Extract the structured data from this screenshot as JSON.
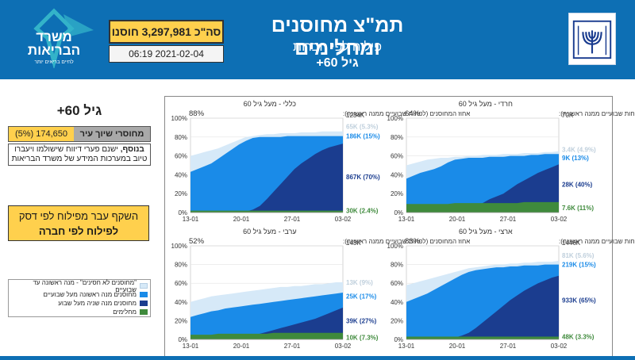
{
  "header": {
    "title": "תמ\"צ מחוסנים ומחלימים",
    "subtitle": "פילוח לפי חברות",
    "age": "גיל 60+",
    "total": "סה\"כ 3,297,981 חוסנו",
    "datetime": "06:19 2021-02-04",
    "ministry_logo_line1": "משרד",
    "ministry_logo_line2": "הבריאות",
    "ministry_logo_tagline": "לחיים בריאים יותר",
    "colors": {
      "header_bg": "#0d6fb4",
      "highlight": "#ffd04d",
      "logo_accent": "#33b3c9"
    }
  },
  "sidebar": {
    "title": "גיל 60+",
    "stat_label": "מחוסרי שיוך עיר",
    "stat_value": "174,650 (5%)",
    "note_bold": "בנוסף,",
    "note_text": " ישנם פערי דיווח שישולמו ויעברו טיוב במערכות המידע של משרד הבריאות",
    "cta_line1": "השקף עבר מפילוח לפי דסק",
    "cta_line2": "לפילוח לפי חברה",
    "legend": [
      {
        "label": "\"מחוסנים לא חסינים\" - מנה ראשונה עד שבועיים",
        "color": "#d6e9f8"
      },
      {
        "label": "מחוסנים מנה ראשונה מעל שבועיים",
        "color": "#1a8be8"
      },
      {
        "label": "מחוסנים מנה שניה מעל שבוע",
        "color": "#1b3d8f"
      },
      {
        "label": "מחלימים",
        "color": "#3f8a3c"
      }
    ]
  },
  "chart_data": [
    {
      "type": "area",
      "title": "כללי - מעל גיל 60",
      "subtitle": "אחוז המחוסנים (לפחות שבועיים ממנה ראשונה):",
      "pct": "88%",
      "population": "1234K",
      "x_ticks": [
        "13-01",
        "20-01",
        "27-01",
        "03-02"
      ],
      "y_ticks": [
        "0%",
        "20%",
        "40%",
        "60%",
        "80%",
        "100%"
      ],
      "ylim": [
        0,
        100
      ],
      "x": [
        0,
        1,
        2,
        3,
        4,
        5,
        6,
        7,
        8,
        9,
        10,
        11,
        12,
        13,
        14,
        15,
        16,
        17,
        18,
        19,
        20,
        21,
        22
      ],
      "series": [
        {
          "name": "תחתון",
          "values": [
            60,
            62,
            64,
            66,
            68,
            71,
            74,
            77,
            80,
            81,
            82,
            83,
            83,
            84,
            84,
            84,
            85,
            85,
            85,
            86,
            86,
            86,
            86
          ]
        },
        {
          "name": "כחול",
          "values": [
            43,
            46,
            49,
            52,
            57,
            62,
            67,
            72,
            76,
            79,
            80,
            80,
            80,
            80,
            81,
            81,
            81,
            81,
            81,
            81,
            81,
            81,
            81
          ]
        },
        {
          "name": "כחול כהה",
          "values": [
            0,
            0,
            0,
            0,
            0,
            0,
            0,
            0,
            1,
            3,
            7,
            14,
            22,
            30,
            38,
            46,
            52,
            57,
            62,
            66,
            69,
            71,
            73
          ]
        },
        {
          "name": "ירוק",
          "values": [
            2,
            2,
            2,
            2,
            2,
            2,
            2,
            2,
            2,
            2,
            2,
            2,
            2,
            2,
            2,
            2,
            2,
            2,
            2,
            2,
            2,
            2,
            2
          ]
        }
      ],
      "labels": [
        {
          "text": "65K (5.3%)",
          "color": "#bfcfdc",
          "y": 91
        },
        {
          "text": "186K (15%)",
          "color": "#1a8be8",
          "y": 81
        },
        {
          "text": "867K (70%)",
          "color": "#1b3d8f",
          "y": 38
        },
        {
          "text": "30K (2.4%)",
          "color": "#3f8a3c",
          "y": 2
        }
      ]
    },
    {
      "type": "area",
      "title": "חרדי - מעל גיל 60",
      "subtitle": "אחוז המחוסנים (לפחות שבועיים ממנה ראשונה):",
      "pct": "64%",
      "population": "70K",
      "x_ticks": [
        "13-01",
        "20-01",
        "27-01",
        "03-02"
      ],
      "y_ticks": [
        "0%",
        "20%",
        "40%",
        "60%",
        "80%",
        "100%"
      ],
      "ylim": [
        0,
        100
      ],
      "x": [
        0,
        1,
        2,
        3,
        4,
        5,
        6,
        7,
        8,
        9,
        10,
        11,
        12,
        13,
        14,
        15,
        16,
        17,
        18,
        19,
        20,
        21,
        22
      ],
      "series": [
        {
          "name": "תחתון",
          "values": [
            50,
            52,
            54,
            56,
            57,
            58,
            58,
            59,
            59,
            60,
            60,
            61,
            61,
            61,
            62,
            62,
            62,
            63,
            63,
            63,
            64,
            64,
            65
          ]
        },
        {
          "name": "כחול",
          "values": [
            36,
            39,
            42,
            44,
            46,
            49,
            53,
            56,
            57,
            58,
            58,
            58,
            59,
            59,
            59,
            60,
            60,
            60,
            61,
            61,
            62,
            62,
            62
          ]
        },
        {
          "name": "כחול כהה",
          "values": [
            0,
            0,
            0,
            0,
            0,
            0,
            0,
            0,
            1,
            3,
            6,
            10,
            14,
            17,
            20,
            25,
            30,
            34,
            38,
            42,
            45,
            48,
            51
          ]
        },
        {
          "name": "ירוק",
          "values": [
            9,
            9,
            9,
            9,
            9,
            9,
            9,
            10,
            10,
            10,
            10,
            10,
            10,
            10,
            10,
            10,
            10,
            11,
            11,
            11,
            11,
            11,
            11
          ]
        }
      ],
      "labels": [
        {
          "text": "3.4K (4.9%)",
          "color": "#bfcfdc",
          "y": 67
        },
        {
          "text": "9K (13%)",
          "color": "#1a8be8",
          "y": 58
        },
        {
          "text": "28K (40%)",
          "color": "#1b3d8f",
          "y": 30
        },
        {
          "text": "7.6K (11%)",
          "color": "#3f8a3c",
          "y": 5
        }
      ]
    },
    {
      "type": "area",
      "title": "ערבי - מעל גיל 60",
      "subtitle": "אחוז המחוסנים (לפחות שבועיים ממנה ראשונה):",
      "pct": "52%",
      "population": "143K",
      "x_ticks": [
        "13-01",
        "20-01",
        "27-01",
        "03-02"
      ],
      "y_ticks": [
        "0%",
        "20%",
        "40%",
        "60%",
        "80%",
        "100%"
      ],
      "ylim": [
        0,
        100
      ],
      "x": [
        0,
        1,
        2,
        3,
        4,
        5,
        6,
        7,
        8,
        9,
        10,
        11,
        12,
        13,
        14,
        15,
        16,
        17,
        18,
        19,
        20,
        21,
        22
      ],
      "series": [
        {
          "name": "תחתון",
          "values": [
            40,
            42,
            44,
            46,
            47,
            48,
            49,
            50,
            51,
            52,
            53,
            54,
            55,
            56,
            56,
            57,
            57,
            58,
            59,
            59,
            60,
            61,
            61
          ]
        },
        {
          "name": "כחול",
          "values": [
            24,
            26,
            28,
            30,
            31,
            33,
            34,
            35,
            36,
            37,
            38,
            39,
            40,
            41,
            42,
            43,
            44,
            45,
            46,
            47,
            48,
            49,
            50
          ]
        },
        {
          "name": "כחול כהה",
          "values": [
            0,
            0,
            0,
            0,
            0,
            1,
            2,
            3,
            4,
            5,
            6,
            8,
            10,
            12,
            14,
            16,
            18,
            20,
            22,
            25,
            28,
            31,
            34
          ]
        },
        {
          "name": "ירוק",
          "values": [
            5,
            5,
            5,
            5,
            6,
            6,
            6,
            6,
            6,
            6,
            6,
            6,
            7,
            7,
            7,
            7,
            7,
            7,
            7,
            7,
            7,
            7,
            7
          ]
        }
      ],
      "labels": [
        {
          "text": "13K (9%)",
          "color": "#bfcfdc",
          "y": 61
        },
        {
          "text": "25K (17%)",
          "color": "#1a8be8",
          "y": 46
        },
        {
          "text": "39K (27%)",
          "color": "#1b3d8f",
          "y": 20
        },
        {
          "text": "10K (7.3%)",
          "color": "#3f8a3c",
          "y": 2
        }
      ]
    },
    {
      "type": "area",
      "title": "ארצי - מעל גיל 60",
      "subtitle": "אחוז המחוסנים (לפחות שבועיים ממנה ראשונה):",
      "pct": "83%",
      "population": "1446K",
      "x_ticks": [
        "13-01",
        "20-01",
        "27-01",
        "03-02"
      ],
      "y_ticks": [
        "0%",
        "20%",
        "40%",
        "60%",
        "80%",
        "100%"
      ],
      "ylim": [
        0,
        100
      ],
      "x": [
        0,
        1,
        2,
        3,
        4,
        5,
        6,
        7,
        8,
        9,
        10,
        11,
        12,
        13,
        14,
        15,
        16,
        17,
        18,
        19,
        20,
        21,
        22
      ],
      "series": [
        {
          "name": "תחתון",
          "values": [
            58,
            60,
            62,
            64,
            66,
            68,
            70,
            72,
            74,
            76,
            77,
            78,
            79,
            80,
            80,
            81,
            81,
            82,
            82,
            83,
            83,
            83,
            84
          ]
        },
        {
          "name": "כחול",
          "values": [
            40,
            43,
            46,
            49,
            53,
            57,
            61,
            65,
            69,
            72,
            74,
            75,
            76,
            77,
            77,
            78,
            78,
            79,
            79,
            79,
            80,
            80,
            80
          ]
        },
        {
          "name": "כחול כהה",
          "values": [
            0,
            0,
            0,
            0,
            0,
            0,
            1,
            2,
            4,
            7,
            12,
            18,
            24,
            30,
            36,
            42,
            47,
            52,
            56,
            60,
            63,
            66,
            68
          ]
        },
        {
          "name": "ירוק",
          "values": [
            3,
            3,
            3,
            3,
            3,
            3,
            3,
            3,
            3,
            3,
            3,
            3,
            3,
            3,
            3,
            3,
            3,
            3,
            3,
            3,
            3,
            3,
            3
          ]
        }
      ],
      "labels": [
        {
          "text": "81K (5.6%)",
          "color": "#bfcfdc",
          "y": 90
        },
        {
          "text": "219K (15%)",
          "color": "#1a8be8",
          "y": 80
        },
        {
          "text": "933K (65%)",
          "color": "#1b3d8f",
          "y": 42
        },
        {
          "text": "48K (3.3%)",
          "color": "#3f8a3c",
          "y": 3
        }
      ]
    }
  ]
}
